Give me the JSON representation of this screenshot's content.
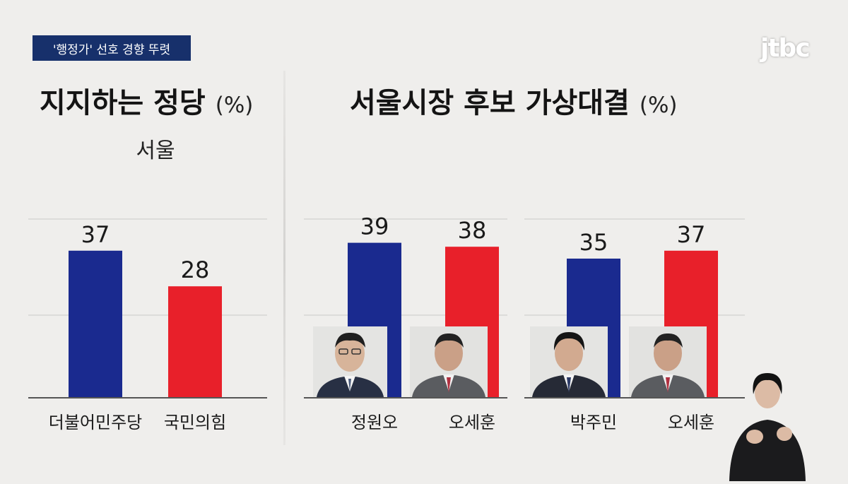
{
  "header": {
    "tag": "'행정가' 선호 경향 뚜렷",
    "logo": "jtbc"
  },
  "left_chart": {
    "title": "지지하는 정당",
    "unit": "(%)",
    "subtitle": "서울"
  },
  "right_chart": {
    "title": "서울시장 후보 가상대결",
    "unit": "(%)"
  },
  "colors": {
    "blue": "#1a2a8f",
    "red": "#e8202a",
    "grid": "#d6d5d3",
    "axis": "#555555"
  },
  "chart_data": [
    {
      "type": "bar",
      "title": "지지하는 정당",
      "subtitle": "서울",
      "ylabel": "(%)",
      "categories": [
        "더불어민주당",
        "국민의힘"
      ],
      "values": [
        37,
        28
      ],
      "colors": [
        "#1a2a8f",
        "#e8202a"
      ],
      "ylim": [
        0,
        45
      ],
      "grid": true
    },
    {
      "type": "bar",
      "title": "서울시장 후보 가상대결",
      "ylabel": "(%)",
      "categories": [
        "정원오",
        "오세훈"
      ],
      "values": [
        39,
        38
      ],
      "colors": [
        "#1a2a8f",
        "#e8202a"
      ],
      "ylim": [
        0,
        45
      ],
      "grid": true
    },
    {
      "type": "bar",
      "title": "",
      "categories": [
        "박주민",
        "오세훈"
      ],
      "values": [
        35,
        37
      ],
      "colors": [
        "#1a2a8f",
        "#e8202a"
      ],
      "ylim": [
        0,
        45
      ],
      "grid": true
    }
  ]
}
